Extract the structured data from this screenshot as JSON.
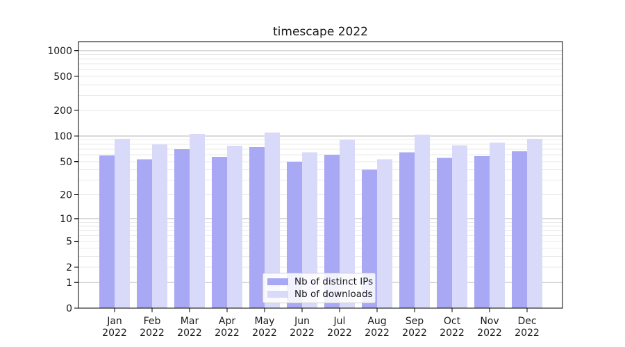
{
  "chart_data": {
    "type": "bar",
    "title": "timescape 2022",
    "categories": [
      "Jan",
      "Feb",
      "Mar",
      "Apr",
      "May",
      "Jun",
      "Jul",
      "Aug",
      "Sep",
      "Oct",
      "Nov",
      "Dec"
    ],
    "category_year_label": "2022",
    "series": [
      {
        "name": "Nb of distinct IPs",
        "color": "#a8a8f4",
        "values": [
          59,
          53,
          70,
          57,
          74,
          50,
          60,
          40,
          64,
          55,
          58,
          66
        ]
      },
      {
        "name": "Nb of downloads",
        "color": "#d9d9f9",
        "values": [
          93,
          80,
          106,
          77,
          110,
          64,
          91,
          53,
          104,
          78,
          84,
          93
        ]
      }
    ],
    "xlabel": "",
    "ylabel": "",
    "yscale": "log1p",
    "ylim": [
      0,
      1270
    ],
    "ytick_labels": [
      0,
      1,
      2,
      5,
      10,
      20,
      50,
      100,
      200,
      500,
      1000
    ],
    "grid": "both",
    "legend_position": "lower center",
    "colors": {
      "grid_major": "#b3b3b3",
      "grid_minor": "#e9e9e9",
      "spine": "#000000",
      "text": "#1a1a1a",
      "legend_border": "#cccccc"
    }
  }
}
